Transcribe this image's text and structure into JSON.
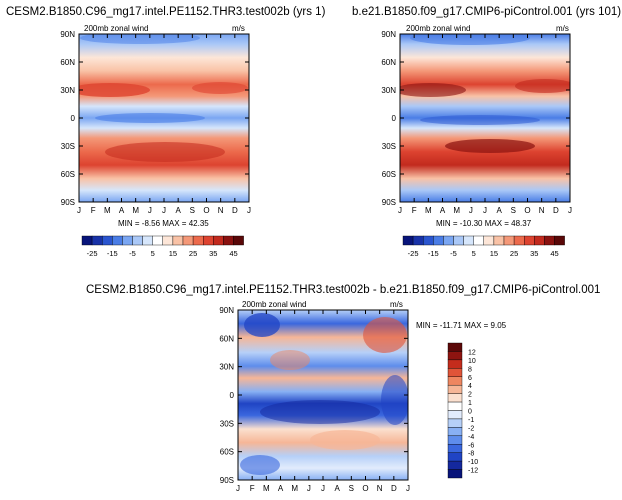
{
  "titles": {
    "left": "CESM2.B1850.C96_mg17.intel.PE1152.THR3.test002b (yrs 1)",
    "right": "b.e21.B1850.f09_g17.CMIP6-piControl.001 (yrs 101)",
    "diff": "CESM2.B1850.C96_mg17.intel.PE1152.THR3.test002b - b.e21.B1850.f09_g17.CMIP6-piControl.001"
  },
  "panels": {
    "left": {
      "name": "200mb zonal wind",
      "units": "m/s",
      "minmax": "MIN = -8.56 MAX = 42.35"
    },
    "right": {
      "name": "200mb zonal wind",
      "units": "m/s",
      "minmax": "MIN = -10.30 MAX = 48.37"
    },
    "diff": {
      "name": "200mb zonal wind",
      "units": "m/s",
      "minmax": "MIN = -11.71 MAX =   9.05"
    }
  },
  "chart_data": [
    {
      "type": "heatmap",
      "title": "CESM2.B1850.C96_mg17.intel.PE1152.THR3.test002b (yrs 1)",
      "subtitle": "200mb zonal wind",
      "units": "m/s",
      "x_ticks": [
        "J",
        "F",
        "M",
        "A",
        "M",
        "J",
        "J",
        "A",
        "S",
        "O",
        "N",
        "D",
        "J"
      ],
      "y_ticks": [
        "90N",
        "60N",
        "30N",
        "0",
        "30S",
        "60S",
        "90S"
      ],
      "ylim": [
        -90,
        90
      ],
      "min": -8.56,
      "max": 42.35,
      "colorbar_labels": [
        "-25",
        "-15",
        "-5",
        "5",
        "15",
        "25",
        "35",
        "45"
      ],
      "colorbar_levels": [
        -25,
        -20,
        -15,
        -10,
        -5,
        0,
        5,
        10,
        15,
        20,
        25,
        30,
        35,
        40,
        45
      ]
    },
    {
      "type": "heatmap",
      "title": "b.e21.B1850.f09_g17.CMIP6-piControl.001 (yrs 101)",
      "subtitle": "200mb zonal wind",
      "units": "m/s",
      "x_ticks": [
        "J",
        "F",
        "M",
        "A",
        "M",
        "J",
        "J",
        "A",
        "S",
        "O",
        "N",
        "D",
        "J"
      ],
      "y_ticks": [
        "90N",
        "60N",
        "30N",
        "0",
        "30S",
        "60S",
        "90S"
      ],
      "ylim": [
        -90,
        90
      ],
      "min": -10.3,
      "max": 48.37,
      "colorbar_labels": [
        "-25",
        "-15",
        "-5",
        "5",
        "15",
        "25",
        "35",
        "45"
      ],
      "colorbar_levels": [
        -25,
        -20,
        -15,
        -10,
        -5,
        0,
        5,
        10,
        15,
        20,
        25,
        30,
        35,
        40,
        45
      ]
    },
    {
      "type": "heatmap",
      "title": "CESM2.B1850.C96_mg17.intel.PE1152.THR3.test002b - b.e21.B1850.f09_g17.CMIP6-piControl.001",
      "subtitle": "200mb zonal wind",
      "units": "m/s",
      "x_ticks": [
        "J",
        "F",
        "M",
        "A",
        "M",
        "J",
        "J",
        "A",
        "S",
        "O",
        "N",
        "D",
        "J"
      ],
      "y_ticks": [
        "90N",
        "60N",
        "30N",
        "0",
        "30S",
        "60S",
        "90S"
      ],
      "ylim": [
        -90,
        90
      ],
      "min": -11.71,
      "max": 9.05,
      "colorbar_labels": [
        "12",
        "10",
        "8",
        "6",
        "4",
        "2",
        "1",
        "0",
        "-1",
        "-2",
        "-4",
        "-6",
        "-8",
        "-10",
        "-12"
      ],
      "colorbar_levels": [
        -12,
        -10,
        -8,
        -6,
        -4,
        -2,
        -1,
        0,
        1,
        2,
        4,
        6,
        8,
        10,
        12
      ]
    }
  ],
  "colors": {
    "palette": [
      "#08147a",
      "#1832a8",
      "#2a55cf",
      "#4a7de6",
      "#7aa6f2",
      "#aac8f7",
      "#d6e6fb",
      "#ffffff",
      "#fde6d8",
      "#f9c2a6",
      "#f49878",
      "#ec6a4c",
      "#dd4330",
      "#c22a1e",
      "#8a1210",
      "#5a0808"
    ],
    "diff_palette": [
      "#08147a",
      "#14289e",
      "#2044c4",
      "#3a67de",
      "#5e8dec",
      "#88b0f4",
      "#b6d0f8",
      "#e2ecfc",
      "#ffffff",
      "#fbe0cf",
      "#f6b697",
      "#ee8660",
      "#e05438",
      "#c42c1c",
      "#8e1410",
      "#5c0808"
    ]
  }
}
